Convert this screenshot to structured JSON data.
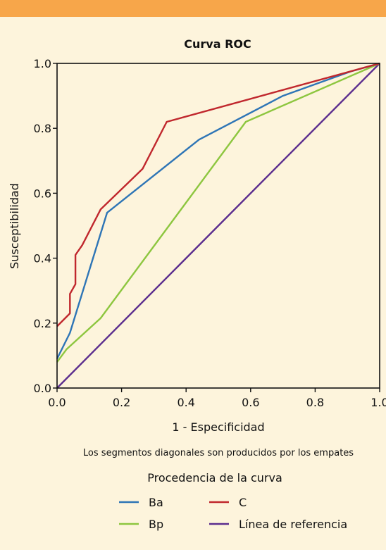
{
  "chart_data": {
    "type": "line",
    "title": "Curva ROC",
    "xlabel": "1 - Especificidad",
    "ylabel": "Susceptibilidad",
    "xlim": [
      0,
      1
    ],
    "ylim": [
      0,
      1
    ],
    "xticks": [
      "0.0",
      "0.2",
      "0.4",
      "0.6",
      "0.8",
      "1.0"
    ],
    "yticks": [
      "0.0",
      "0.2",
      "0.4",
      "0.6",
      "0.8",
      "1.0"
    ],
    "grid": false,
    "note": "Los segmentos diagonales son producidos por los empates",
    "legend_title": "Procedencia de la curva",
    "legend_position": "bottom",
    "series": [
      {
        "name": "Ba",
        "color": "#2e75b6",
        "points": [
          [
            0,
            0.09
          ],
          [
            0.04,
            0.17
          ],
          [
            0.155,
            0.54
          ],
          [
            0.44,
            0.765
          ],
          [
            0.7,
            0.9
          ],
          [
            0.91,
            0.975
          ],
          [
            1,
            1
          ]
        ]
      },
      {
        "name": "C",
        "color": "#c0272d",
        "points": [
          [
            0,
            0.19
          ],
          [
            0.04,
            0.23
          ],
          [
            0.04,
            0.29
          ],
          [
            0.057,
            0.32
          ],
          [
            0.057,
            0.41
          ],
          [
            0.078,
            0.44
          ],
          [
            0.135,
            0.55
          ],
          [
            0.265,
            0.675
          ],
          [
            0.34,
            0.82
          ],
          [
            1,
            1
          ]
        ]
      },
      {
        "name": "Bp",
        "color": "#8dc63f",
        "points": [
          [
            0,
            0.08
          ],
          [
            0.03,
            0.12
          ],
          [
            0.135,
            0.215
          ],
          [
            0.585,
            0.82
          ],
          [
            1,
            1
          ]
        ]
      },
      {
        "name": "Línea de referencia",
        "color": "#5b2d8e",
        "points": [
          [
            0,
            0
          ],
          [
            1,
            1
          ]
        ]
      }
    ]
  }
}
